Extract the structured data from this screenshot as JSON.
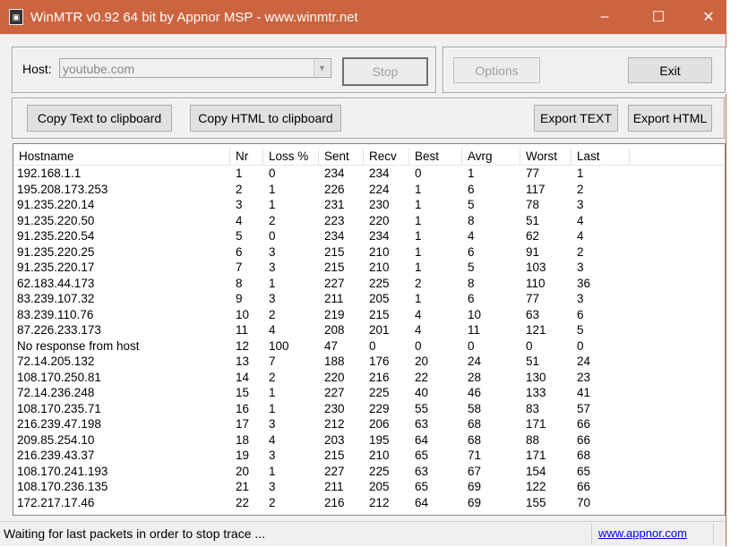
{
  "window": {
    "title": "WinMTR v0.92 64 bit by Appnor MSP - www.winmtr.net",
    "minimize": "–",
    "maximize": "☐",
    "close": "✕"
  },
  "host": {
    "label": "Host:",
    "value": "youtube.com"
  },
  "buttons": {
    "stop": "Stop",
    "options": "Options",
    "exit": "Exit",
    "copy_text": "Copy Text to clipboard",
    "copy_html": "Copy HTML to clipboard",
    "export_text": "Export TEXT",
    "export_html": "Export HTML"
  },
  "table": {
    "columns": [
      "Hostname",
      "Nr",
      "Loss %",
      "Sent",
      "Recv",
      "Best",
      "Avrg",
      "Worst",
      "Last"
    ],
    "rows": [
      [
        "192.168.1.1",
        "1",
        "0",
        "234",
        "234",
        "0",
        "1",
        "77",
        "1"
      ],
      [
        "195.208.173.253",
        "2",
        "1",
        "226",
        "224",
        "1",
        "6",
        "117",
        "2"
      ],
      [
        "91.235.220.14",
        "3",
        "1",
        "231",
        "230",
        "1",
        "5",
        "78",
        "3"
      ],
      [
        "91.235.220.50",
        "4",
        "2",
        "223",
        "220",
        "1",
        "8",
        "51",
        "4"
      ],
      [
        "91.235.220.54",
        "5",
        "0",
        "234",
        "234",
        "1",
        "4",
        "62",
        "4"
      ],
      [
        "91.235.220.25",
        "6",
        "3",
        "215",
        "210",
        "1",
        "6",
        "91",
        "2"
      ],
      [
        "91.235.220.17",
        "7",
        "3",
        "215",
        "210",
        "1",
        "5",
        "103",
        "3"
      ],
      [
        "62.183.44.173",
        "8",
        "1",
        "227",
        "225",
        "2",
        "8",
        "110",
        "36"
      ],
      [
        "83.239.107.32",
        "9",
        "3",
        "211",
        "205",
        "1",
        "6",
        "77",
        "3"
      ],
      [
        "83.239.110.76",
        "10",
        "2",
        "219",
        "215",
        "4",
        "10",
        "63",
        "6"
      ],
      [
        "87.226.233.173",
        "11",
        "4",
        "208",
        "201",
        "4",
        "11",
        "121",
        "5"
      ],
      [
        "No response from host",
        "12",
        "100",
        "47",
        "0",
        "0",
        "0",
        "0",
        "0"
      ],
      [
        "72.14.205.132",
        "13",
        "7",
        "188",
        "176",
        "20",
        "24",
        "51",
        "24"
      ],
      [
        "108.170.250.81",
        "14",
        "2",
        "220",
        "216",
        "22",
        "28",
        "130",
        "23"
      ],
      [
        "72.14.236.248",
        "15",
        "1",
        "227",
        "225",
        "40",
        "46",
        "133",
        "41"
      ],
      [
        "108.170.235.71",
        "16",
        "1",
        "230",
        "229",
        "55",
        "58",
        "83",
        "57"
      ],
      [
        "216.239.47.198",
        "17",
        "3",
        "212",
        "206",
        "63",
        "68",
        "171",
        "66"
      ],
      [
        "209.85.254.10",
        "18",
        "4",
        "203",
        "195",
        "64",
        "68",
        "88",
        "66"
      ],
      [
        "216.239.43.37",
        "19",
        "3",
        "215",
        "210",
        "65",
        "71",
        "171",
        "68"
      ],
      [
        "108.170.241.193",
        "20",
        "1",
        "227",
        "225",
        "63",
        "67",
        "154",
        "65"
      ],
      [
        "108.170.236.135",
        "21",
        "3",
        "211",
        "205",
        "65",
        "69",
        "122",
        "66"
      ],
      [
        "172.217.17.46",
        "22",
        "2",
        "216",
        "212",
        "64",
        "69",
        "155",
        "70"
      ]
    ]
  },
  "status": {
    "message": "Waiting for last packets in order to stop trace ...",
    "link": "www.appnor.com"
  },
  "colors": {
    "titlebar": "#cc6440",
    "link": "#0000ee"
  }
}
